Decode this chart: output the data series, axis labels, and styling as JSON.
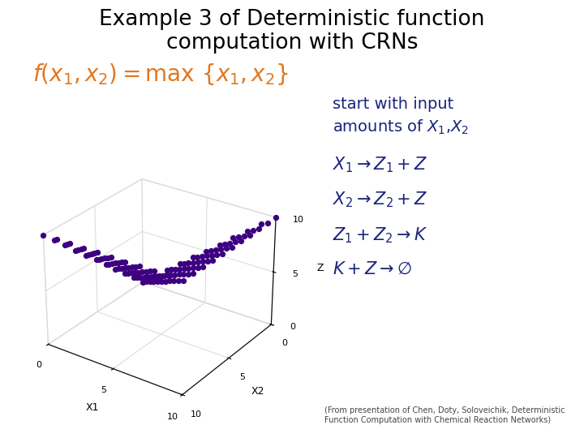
{
  "title_line1": "Example 3 of Deterministic function",
  "title_line2": "computation with CRNs",
  "title_color": "#000000",
  "title_fontsize": 19,
  "formula_color": "#e07820",
  "formula_fontsize": 20,
  "dot_color": "#3d0080",
  "dot_size": 18,
  "right_text_color": "#1a237e",
  "footnote": "(From presentation of Chen, Doty, Soloveichik, Deterministic\nFunction Computation with Chemical Reaction Networks)",
  "bg_color": "#ffffff",
  "elev": 28,
  "azim": -55
}
